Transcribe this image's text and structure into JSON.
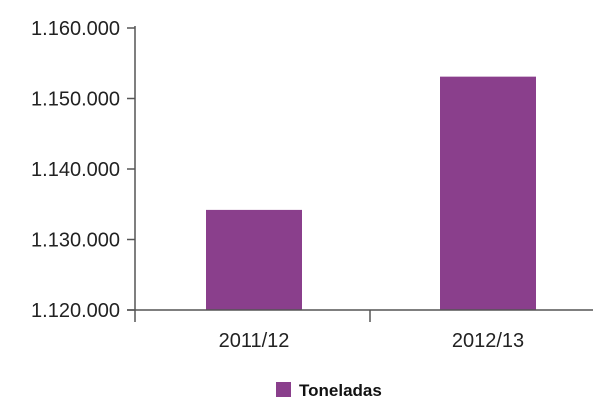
{
  "chart_data": {
    "type": "bar",
    "categories": [
      "2011/12",
      "2012/13"
    ],
    "series": [
      {
        "name": "Toneladas",
        "values": [
          1134200,
          1153100
        ],
        "color": "#8a3f8c"
      }
    ],
    "y_ticks": [
      "1.120.000",
      "1.130.000",
      "1.140.000",
      "1.150.000",
      "1.160.000"
    ],
    "ylim": [
      1120000,
      1160000
    ],
    "grid": false,
    "legend_position": "bottom-center",
    "axis_color": "#555555"
  }
}
